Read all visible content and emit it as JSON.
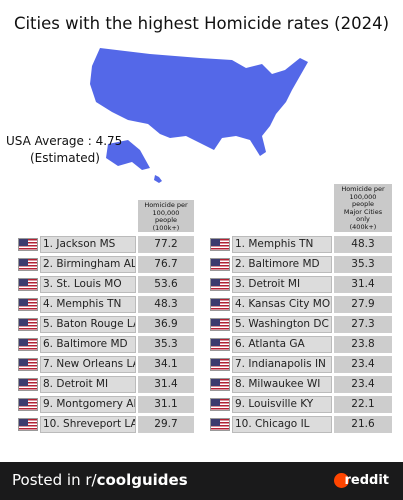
{
  "title": "Cities with the highest Homicide rates (2024)",
  "usa_average": "USA Average : 4.75",
  "estimated": "(Estimated)",
  "left_table": {
    "header": [
      "Homicide per",
      "100,000",
      "people",
      "(100k+)"
    ],
    "rows": [
      [
        "1. Jackson MS",
        77.2
      ],
      [
        "2. Birmingham AL",
        76.7
      ],
      [
        "3. St. Louis MO",
        53.6
      ],
      [
        "4. Memphis TN",
        48.3
      ],
      [
        "5. Baton Rouge LA",
        36.9
      ],
      [
        "6. Baltimore MD",
        35.3
      ],
      [
        "7. New Orleans LA",
        34.1
      ],
      [
        "8. Detroit MI",
        31.4
      ],
      [
        "9. Montgomery AL",
        31.1
      ],
      [
        "10. Shreveport LA",
        29.7
      ]
    ]
  },
  "right_table": {
    "header": [
      "Homicide per",
      "100,000",
      "people",
      "Major Cities",
      "only",
      "(400k+)"
    ],
    "rows": [
      [
        "1. Memphis TN",
        48.3
      ],
      [
        "2. Baltimore MD",
        35.3
      ],
      [
        "3. Detroit MI",
        31.4
      ],
      [
        "4. Kansas City MO",
        27.9
      ],
      [
        "5. Washington DC",
        27.3
      ],
      [
        "6. Atlanta GA",
        23.8
      ],
      [
        "7. Indianapolis IN",
        23.4
      ],
      [
        "8. Milwaukee WI",
        23.4
      ],
      [
        "9. Louisville KY",
        22.1
      ],
      [
        "10. Chicago IL",
        21.6
      ]
    ]
  },
  "footer": {
    "prefix": "Posted in r/",
    "subreddit": "coolguides",
    "brand": "reddit"
  }
}
